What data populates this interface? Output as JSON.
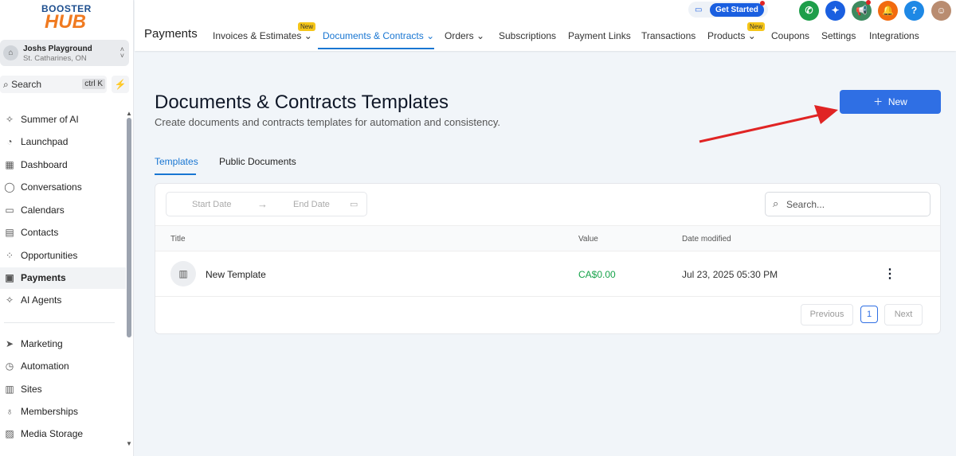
{
  "logo": {
    "top": "BOOSTER",
    "bottom": "HUB"
  },
  "account": {
    "name": "Joshs Playground",
    "location": "St. Catharines, ON"
  },
  "search": {
    "label": "Search",
    "shortcut": "ctrl K"
  },
  "sidebar": {
    "items": [
      {
        "label": "Summer of AI",
        "icon": "sparkle-icon",
        "glyph": "✧"
      },
      {
        "label": "Launchpad",
        "icon": "rocket-icon",
        "glyph": "◔"
      },
      {
        "label": "Dashboard",
        "icon": "dashboard-icon",
        "glyph": "▦"
      },
      {
        "label": "Conversations",
        "icon": "chat-icon",
        "glyph": "◯"
      },
      {
        "label": "Calendars",
        "icon": "calendar-icon",
        "glyph": "▭"
      },
      {
        "label": "Contacts",
        "icon": "contacts-icon",
        "glyph": "▤"
      },
      {
        "label": "Opportunities",
        "icon": "opportunities-icon",
        "glyph": "⁘"
      },
      {
        "label": "Payments",
        "icon": "payments-icon",
        "glyph": "▣",
        "active": true
      },
      {
        "label": "AI Agents",
        "icon": "ai-agents-icon",
        "glyph": "✧"
      },
      {
        "label": "Marketing",
        "icon": "send-icon",
        "glyph": "➤"
      },
      {
        "label": "Automation",
        "icon": "automation-icon",
        "glyph": "◷"
      },
      {
        "label": "Sites",
        "icon": "sites-icon",
        "glyph": "▥"
      },
      {
        "label": "Memberships",
        "icon": "memberships-icon",
        "glyph": "♁"
      },
      {
        "label": "Media Storage",
        "icon": "image-icon",
        "glyph": "▨"
      }
    ]
  },
  "header": {
    "title": "Payments",
    "tabs": [
      {
        "label": "Invoices & Estimates",
        "dropdown": true,
        "badge": "New"
      },
      {
        "label": "Documents & Contracts",
        "dropdown": true,
        "active": true
      },
      {
        "label": "Orders",
        "dropdown": true
      },
      {
        "label": "Subscriptions"
      },
      {
        "label": "Payment Links"
      },
      {
        "label": "Transactions"
      },
      {
        "label": "Products",
        "dropdown": true,
        "badge": "New"
      },
      {
        "label": "Coupons"
      },
      {
        "label": "Settings"
      },
      {
        "label": "Integrations"
      }
    ],
    "get_started": "Get Started",
    "actions": [
      {
        "icon": "phone-icon",
        "glyph": "✆",
        "color": "#1e9e4a"
      },
      {
        "icon": "ai-sparkle-icon",
        "glyph": "✦",
        "color": "#1a5fe0"
      },
      {
        "icon": "megaphone-icon",
        "glyph": "📢",
        "color": "#3d8a5f"
      },
      {
        "icon": "bell-icon",
        "glyph": "🔔",
        "color": "#f26b0f"
      },
      {
        "icon": "help-icon",
        "glyph": "?",
        "color": "#1e88e5"
      }
    ]
  },
  "main": {
    "title": "Documents & Contracts Templates",
    "subtitle": "Create documents and contracts templates for automation and consistency.",
    "new_button": "New",
    "tabs": [
      {
        "label": "Templates",
        "active": true
      },
      {
        "label": "Public Documents"
      }
    ],
    "filters": {
      "start_placeholder": "Start Date",
      "end_placeholder": "End Date",
      "search_placeholder": "Search..."
    },
    "columns": [
      "Title",
      "Value",
      "Date modified"
    ],
    "rows": [
      {
        "title": "New Template",
        "value": "CA$0.00",
        "date": "Jul 23, 2025 05:30 PM"
      }
    ],
    "pagination": {
      "previous": "Previous",
      "page": "1",
      "next": "Next"
    }
  },
  "colors": {
    "accent": "#2f6fe4",
    "value_green": "#16a34a",
    "annotation_arrow": "#e02424"
  }
}
